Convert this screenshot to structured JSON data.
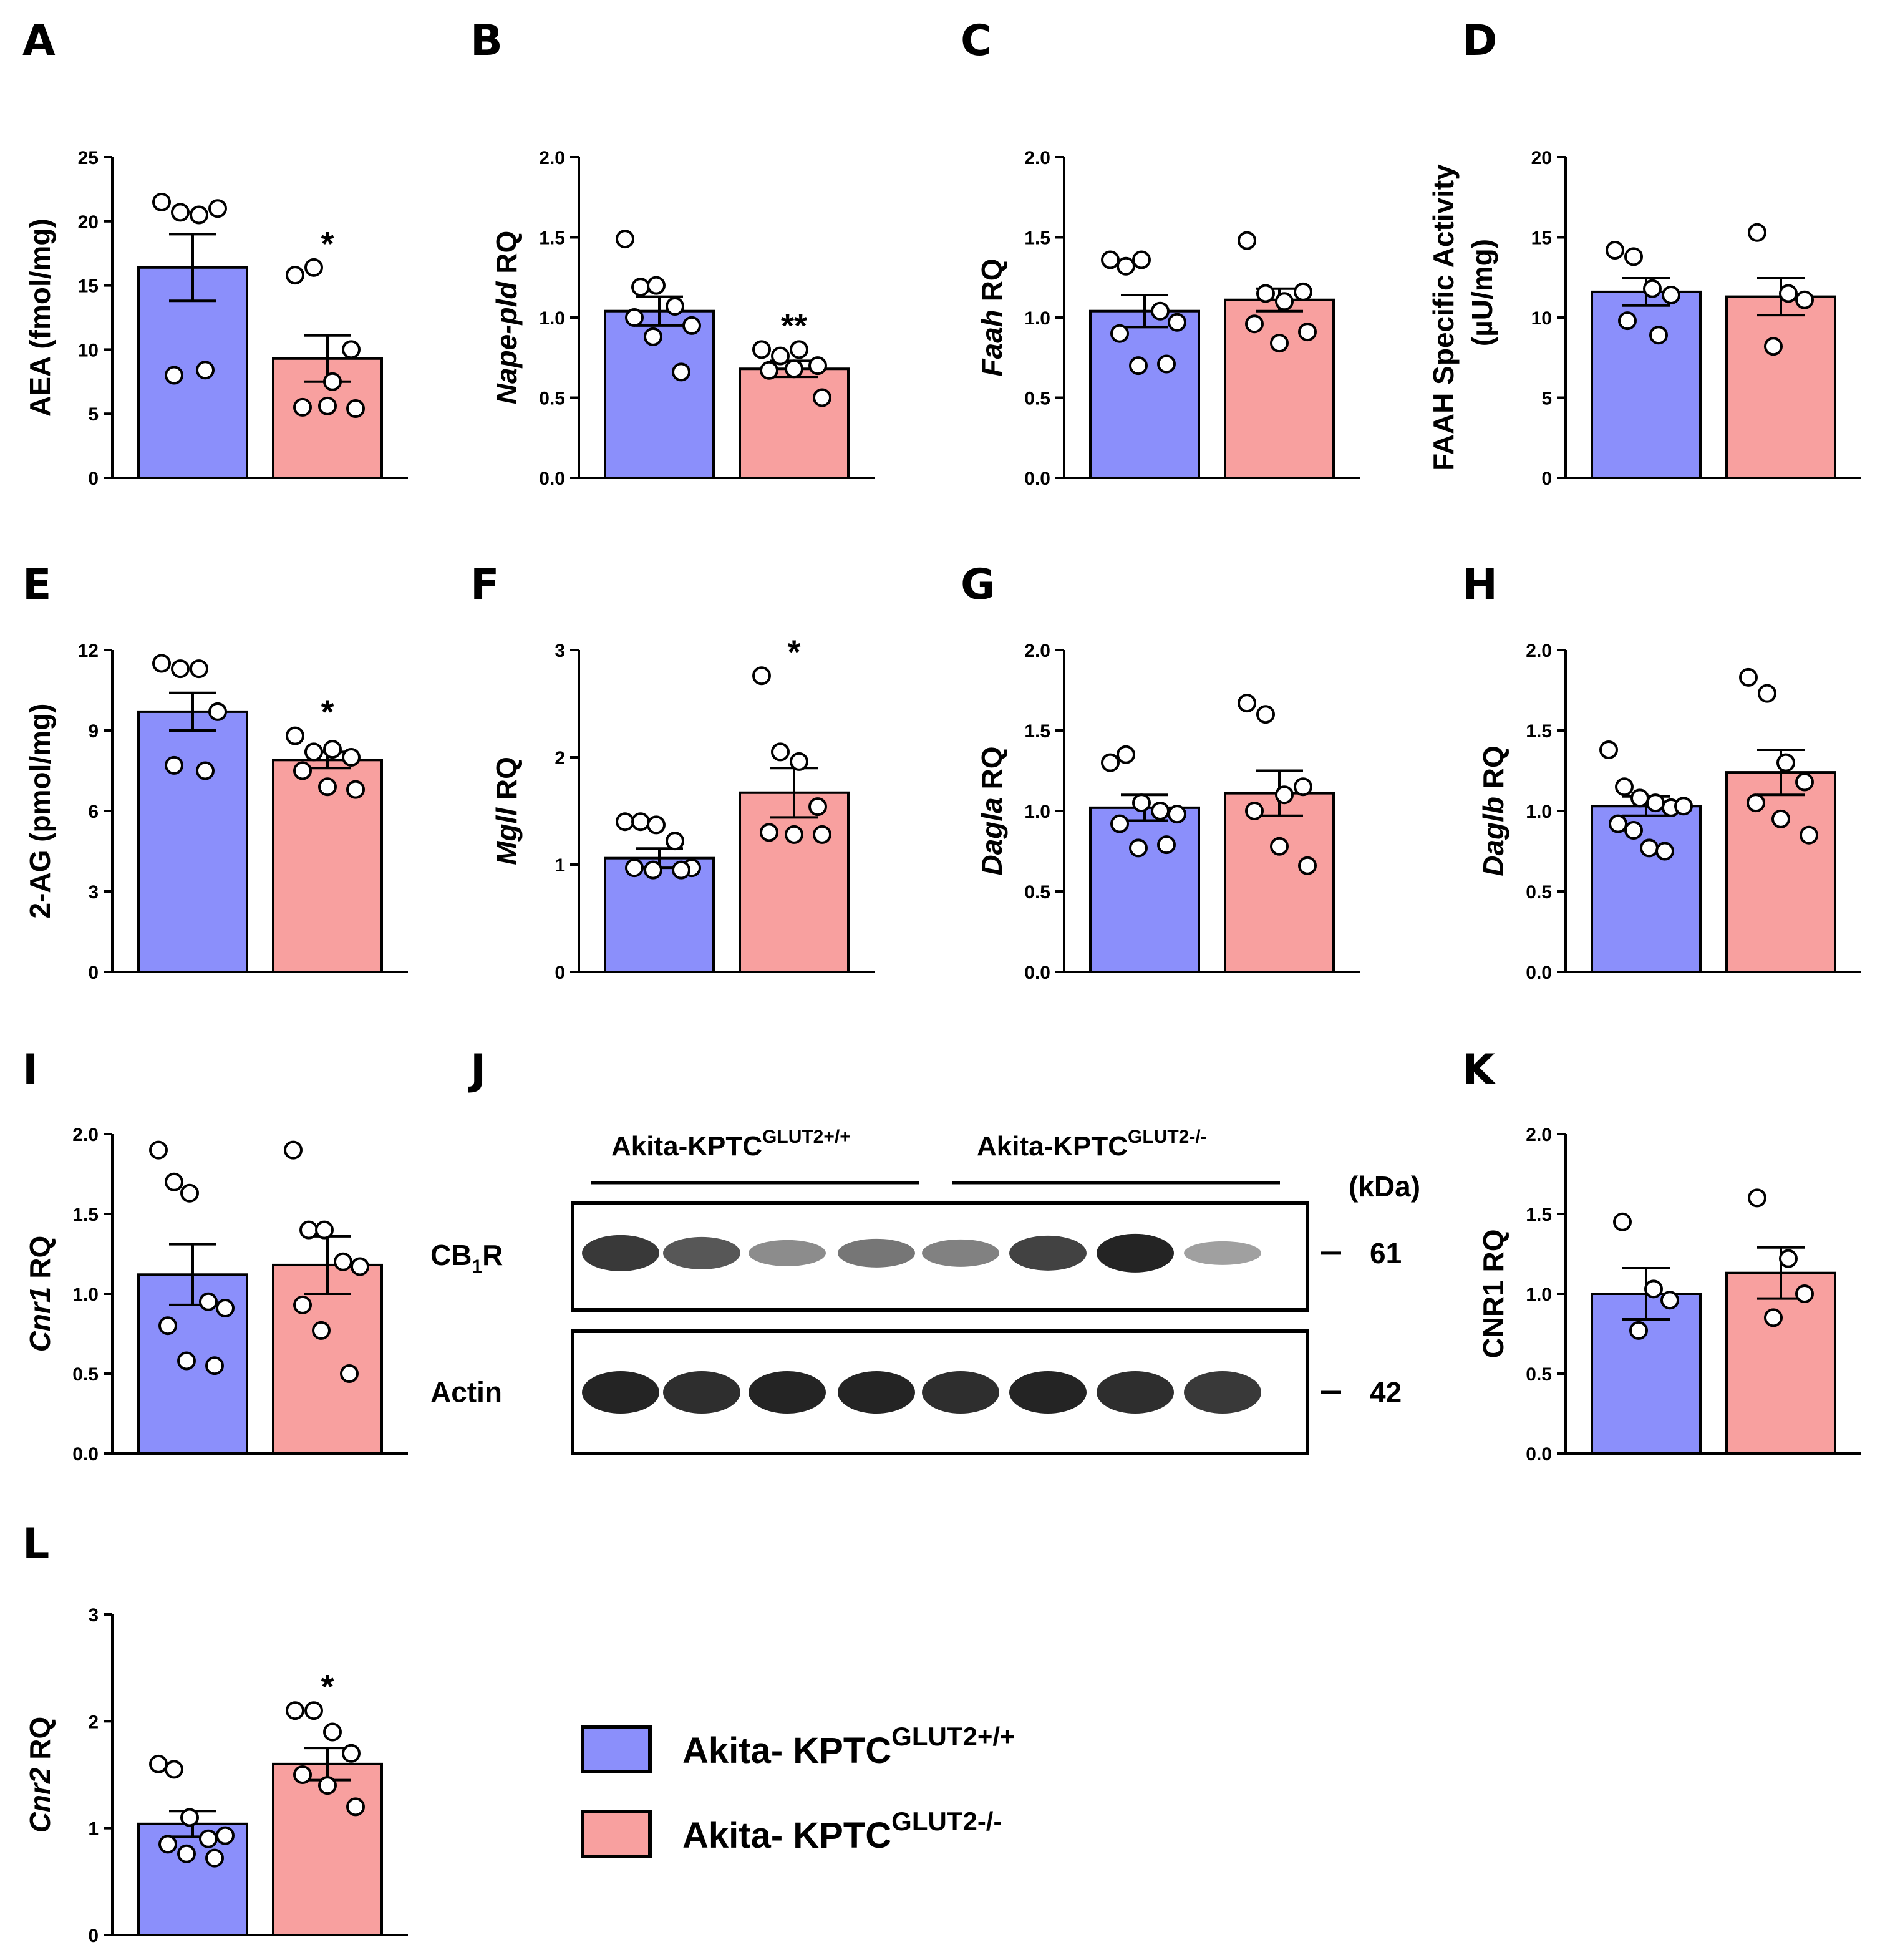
{
  "colors": {
    "wt": "#8b8ffb",
    "ko": "#f8a09f",
    "line": "#000000"
  },
  "legend": [
    {
      "text": "Akita- KPTC",
      "sup": "GLUT2+/+",
      "color": "#8b8ffb"
    },
    {
      "text": "Akita- KPTC",
      "sup": "GLUT2-/-",
      "color": "#f8a09f"
    }
  ],
  "chart_data": [
    {
      "type": "bar",
      "letter": "A",
      "ylabel": [
        {
          "t": "AEA (fmol/mg)",
          "i": false
        }
      ],
      "ylim": [
        0,
        25
      ],
      "ticks": [
        "0",
        "5",
        "10",
        "15",
        "20",
        "25"
      ],
      "tick_values": [
        0,
        5,
        10,
        15,
        20,
        25
      ],
      "series": [
        {
          "name": "Akita- KPTC GLUT2+/+",
          "mean": 16.4,
          "sem": 2.6,
          "points": [
            21.5,
            20.7,
            20.5,
            21,
            8,
            8.4
          ]
        },
        {
          "name": "Akita- KPTC GLUT2-/-",
          "mean": 9.3,
          "sem": 1.8,
          "points": [
            15.8,
            16.4,
            7.5,
            10,
            5.5,
            5.6,
            5.4
          ]
        }
      ],
      "sig": "*"
    },
    {
      "type": "bar",
      "letter": "B",
      "ylabel": [
        {
          "t": "Nape-pld",
          "i": true
        },
        {
          "t": " RQ",
          "i": false
        }
      ],
      "ylim": [
        0,
        2
      ],
      "ticks": [
        "0.0",
        "0.5",
        "1.0",
        "1.5",
        "2.0"
      ],
      "tick_values": [
        0,
        0.5,
        1,
        1.5,
        2
      ],
      "series": [
        {
          "name": "Akita- KPTC GLUT2+/+",
          "mean": 1.04,
          "sem": 0.09,
          "points": [
            1.49,
            1.19,
            1.2,
            1.07,
            0.95,
            1.0,
            0.88,
            0.66
          ]
        },
        {
          "name": "Akita- KPTC GLUT2-/-",
          "mean": 0.68,
          "sem": 0.05,
          "points": [
            0.8,
            0.76,
            0.8,
            0.7,
            0.67,
            0.68,
            0.5
          ]
        }
      ],
      "sig": "**"
    },
    {
      "type": "bar",
      "letter": "C",
      "ylabel": [
        {
          "t": "Faah",
          "i": true
        },
        {
          "t": " RQ",
          "i": false
        }
      ],
      "ylim": [
        0,
        2
      ],
      "ticks": [
        "0.0",
        "0.5",
        "1.0",
        "1.5",
        "2.0"
      ],
      "tick_values": [
        0,
        0.5,
        1,
        1.5,
        2
      ],
      "series": [
        {
          "name": "Akita- KPTC GLUT2+/+",
          "mean": 1.04,
          "sem": 0.1,
          "points": [
            1.36,
            1.32,
            1.36,
            1.04,
            0.97,
            0.9,
            0.7,
            0.71
          ]
        },
        {
          "name": "Akita- KPTC GLUT2-/-",
          "mean": 1.11,
          "sem": 0.07,
          "points": [
            1.48,
            1.15,
            1.1,
            1.16,
            0.96,
            0.84,
            0.91
          ]
        }
      ],
      "sig": ""
    },
    {
      "type": "bar",
      "letter": "D",
      "ylabel": [
        {
          "t": "FAAH Specific Activity",
          "i": false
        }
      ],
      "ylabel2": "(µU/mg)",
      "ylim": [
        0,
        20
      ],
      "ticks": [
        "0",
        "5",
        "10",
        "15",
        "20"
      ],
      "tick_values": [
        0,
        5,
        10,
        15,
        20
      ],
      "series": [
        {
          "name": "Akita- KPTC GLUT2+/+",
          "mean": 11.6,
          "sem": 0.85,
          "points": [
            14.2,
            13.8,
            11.8,
            11.4,
            9.8,
            8.9
          ]
        },
        {
          "name": "Akita- KPTC GLUT2-/-",
          "mean": 11.3,
          "sem": 1.15,
          "points": [
            15.3,
            11.5,
            11.1,
            8.2
          ]
        }
      ],
      "sig": ""
    },
    {
      "type": "bar",
      "letter": "E",
      "ylabel": [
        {
          "t": "2-AG (pmol/mg)",
          "i": false
        }
      ],
      "ylim": [
        0,
        12
      ],
      "ticks": [
        "0",
        "3",
        "6",
        "9",
        "12"
      ],
      "tick_values": [
        0,
        3,
        6,
        9,
        12
      ],
      "series": [
        {
          "name": "Akita- KPTC GLUT2+/+",
          "mean": 9.7,
          "sem": 0.7,
          "points": [
            11.5,
            11.3,
            11.3,
            9.7,
            7.7,
            7.5
          ]
        },
        {
          "name": "Akita- KPTC GLUT2-/-",
          "mean": 7.9,
          "sem": 0.3,
          "points": [
            8.8,
            8.2,
            8.3,
            8.0,
            7.5,
            6.9,
            6.8
          ]
        }
      ],
      "sig": "*"
    },
    {
      "type": "bar",
      "letter": "F",
      "ylabel": [
        {
          "t": "Mgll",
          "i": true
        },
        {
          "t": " RQ",
          "i": false
        }
      ],
      "ylim": [
        0,
        3
      ],
      "ticks": [
        "0",
        "1",
        "2",
        "3"
      ],
      "tick_values": [
        0,
        1,
        2,
        3
      ],
      "series": [
        {
          "name": "Akita- KPTC GLUT2+/+",
          "mean": 1.06,
          "sem": 0.09,
          "points": [
            1.4,
            1.4,
            1.37,
            1.22,
            0.97,
            0.97,
            0.95,
            0.95
          ]
        },
        {
          "name": "Akita- KPTC GLUT2-/-",
          "mean": 1.67,
          "sem": 0.23,
          "points": [
            2.76,
            2.05,
            1.96,
            1.54,
            1.3,
            1.28,
            1.28
          ]
        }
      ],
      "sig": "*"
    },
    {
      "type": "bar",
      "letter": "G",
      "ylabel": [
        {
          "t": "Dagla",
          "i": true
        },
        {
          "t": " RQ",
          "i": false
        }
      ],
      "ylim": [
        0,
        2
      ],
      "ticks": [
        "0.0",
        "0.5",
        "1.0",
        "1.5",
        "2.0"
      ],
      "tick_values": [
        0,
        0.5,
        1,
        1.5,
        2
      ],
      "series": [
        {
          "name": "Akita- KPTC GLUT2+/+",
          "mean": 1.02,
          "sem": 0.08,
          "points": [
            1.3,
            1.35,
            1.05,
            1.0,
            0.98,
            0.92,
            0.77,
            0.79
          ]
        },
        {
          "name": "Akita- KPTC GLUT2-/-",
          "mean": 1.11,
          "sem": 0.14,
          "points": [
            1.67,
            1.6,
            1.1,
            1.15,
            1.0,
            0.78,
            0.66
          ]
        }
      ],
      "sig": ""
    },
    {
      "type": "bar",
      "letter": "H",
      "ylabel": [
        {
          "t": "Daglb",
          "i": true
        },
        {
          "t": " RQ",
          "i": false
        }
      ],
      "ylim": [
        0,
        2
      ],
      "ticks": [
        "0.0",
        "0.5",
        "1.0",
        "1.5",
        "2.0"
      ],
      "tick_values": [
        0,
        0.5,
        1,
        1.5,
        2
      ],
      "series": [
        {
          "name": "Akita- KPTC GLUT2+/+",
          "mean": 1.03,
          "sem": 0.06,
          "points": [
            1.38,
            1.15,
            1.08,
            1.05,
            1.02,
            1.03,
            0.92,
            0.88,
            0.77,
            0.75
          ]
        },
        {
          "name": "Akita- KPTC GLUT2-/-",
          "mean": 1.24,
          "sem": 0.14,
          "points": [
            1.83,
            1.73,
            1.3,
            1.18,
            1.05,
            0.95,
            0.85
          ]
        }
      ],
      "sig": ""
    },
    {
      "type": "bar",
      "letter": "I",
      "ylabel": [
        {
          "t": "Cnr1",
          "i": true
        },
        {
          "t": " RQ",
          "i": false
        }
      ],
      "ylim": [
        0,
        2
      ],
      "ticks": [
        "0.0",
        "0.5",
        "1.0",
        "1.5",
        "2.0"
      ],
      "tick_values": [
        0,
        0.5,
        1,
        1.5,
        2
      ],
      "series": [
        {
          "name": "Akita- KPTC GLUT2+/+",
          "mean": 1.12,
          "sem": 0.19,
          "points": [
            1.9,
            1.7,
            1.63,
            0.95,
            0.91,
            0.8,
            0.58,
            0.55
          ]
        },
        {
          "name": "Akita- KPTC GLUT2-/-",
          "mean": 1.18,
          "sem": 0.18,
          "points": [
            1.9,
            1.4,
            1.4,
            1.2,
            1.17,
            0.93,
            0.77,
            0.5
          ]
        }
      ],
      "sig": ""
    },
    {
      "type": "bar",
      "letter": "K",
      "ylabel": [
        {
          "t": "CNR1 RQ",
          "i": false
        }
      ],
      "ylim": [
        0,
        2
      ],
      "ticks": [
        "0.0",
        "0.5",
        "1.0",
        "1.5",
        "2.0"
      ],
      "tick_values": [
        0,
        0.5,
        1,
        1.5,
        2
      ],
      "series": [
        {
          "name": "Akita- KPTC GLUT2+/+",
          "mean": 1.0,
          "sem": 0.16,
          "points": [
            1.45,
            1.03,
            0.96,
            0.77
          ]
        },
        {
          "name": "Akita- KPTC GLUT2-/-",
          "mean": 1.13,
          "sem": 0.16,
          "points": [
            1.6,
            1.22,
            1.0,
            0.85
          ]
        }
      ],
      "sig": ""
    },
    {
      "type": "bar",
      "letter": "L",
      "ylabel": [
        {
          "t": "Cnr2",
          "i": true
        },
        {
          "t": " RQ",
          "i": false
        }
      ],
      "ylim": [
        0,
        3
      ],
      "ticks": [
        "0",
        "1",
        "2",
        "3"
      ],
      "tick_values": [
        0,
        1,
        2,
        3
      ],
      "series": [
        {
          "name": "Akita- KPTC GLUT2+/+",
          "mean": 1.04,
          "sem": 0.12,
          "points": [
            1.6,
            1.55,
            1.1,
            0.9,
            0.93,
            0.85,
            0.76,
            0.72
          ]
        },
        {
          "name": "Akita- KPTC GLUT2-/-",
          "mean": 1.6,
          "sem": 0.15,
          "points": [
            2.1,
            2.1,
            1.9,
            1.7,
            1.5,
            1.4,
            1.2
          ]
        }
      ],
      "sig": "*"
    }
  ],
  "western_blot": {
    "letter": "J",
    "group1": {
      "text": "Akita-KPTC",
      "sup": "GLUT2+/+"
    },
    "group2": {
      "text": "Akita-KPTC",
      "sup": "GLUT2-/-"
    },
    "unit": "(kDa)",
    "rows": [
      {
        "label": "CB",
        "sub": "1",
        "label_end": "R",
        "kda": "61",
        "intensity": [
          0.85,
          0.7,
          0.45,
          0.55,
          0.5,
          0.8,
          0.95,
          0.35
        ]
      },
      {
        "label": "Actin",
        "sub": "",
        "label_end": "",
        "kda": "42",
        "intensity": [
          0.95,
          0.9,
          0.95,
          0.95,
          0.9,
          0.95,
          0.9,
          0.85
        ]
      }
    ]
  }
}
